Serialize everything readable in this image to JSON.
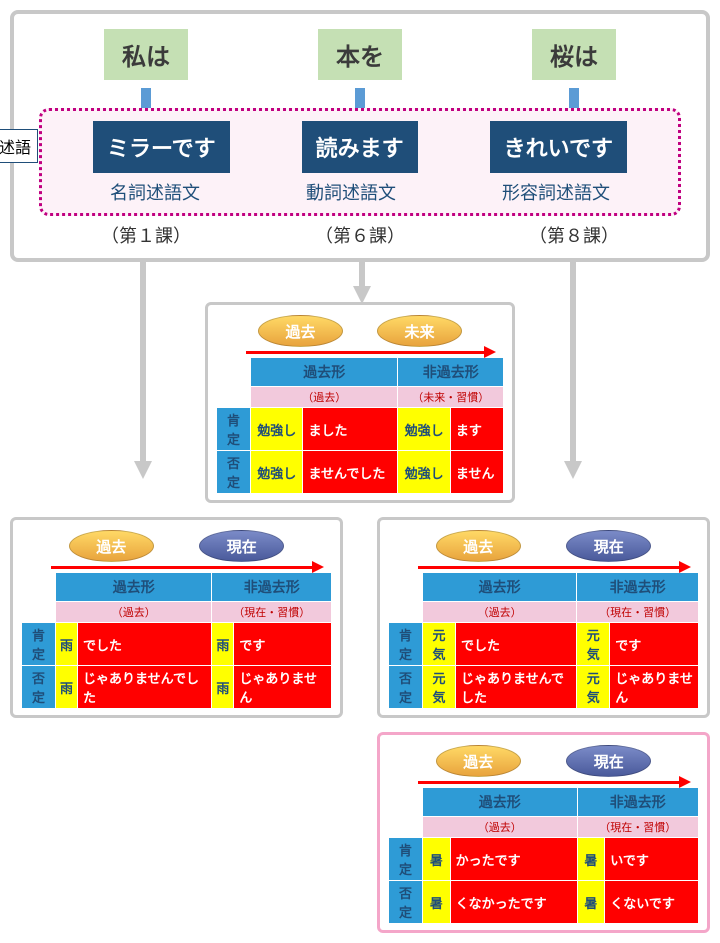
{
  "top": {
    "subjects": [
      "私は",
      "本を",
      "桜は"
    ],
    "jutsugo_label": "述語",
    "predicates": [
      "ミラーです",
      "読みます",
      "きれいです"
    ],
    "types": [
      "名詞述語文",
      "動詞述語文",
      "形容詞述語文"
    ],
    "lessons": [
      "（第１課）",
      "（第６課）",
      "（第８課）"
    ]
  },
  "colors": {
    "green": "#c5e0b4",
    "darkblue_box": "#1f4e79",
    "dotted_border": "#c00080",
    "dotted_bg": "#fdf2f8",
    "container_border": "#c8c8c8",
    "pink_border": "#f4a6c9",
    "header_blue": "#2e9bd6",
    "sub_pink": "#f2c9dc",
    "yellow": "#ffff00",
    "red": "#ff0000",
    "oval_orange": "#e8a33d",
    "oval_blue": "#4a5a9b"
  },
  "tables": [
    {
      "id": "verb",
      "oval_left": "過去",
      "oval_right": "未来",
      "oval_right_color": "orange",
      "col1": "過去形",
      "col2": "非過去形",
      "sub1": "（過去）",
      "sub2": "（未来・習慣）",
      "rows": [
        {
          "label": "肯定",
          "a": "勉強し",
          "b": "ました",
          "c": "勉強し",
          "d": "ます"
        },
        {
          "label": "否定",
          "a": "勉強し",
          "b": "ませんでした",
          "c": "勉強し",
          "d": "ません"
        }
      ]
    },
    {
      "id": "noun",
      "oval_left": "過去",
      "oval_right": "現在",
      "oval_right_color": "blue",
      "col1": "過去形",
      "col2": "非過去形",
      "sub1": "（過去）",
      "sub2": "（現在・習慣）",
      "rows": [
        {
          "label": "肯定",
          "a": "雨",
          "b": "でした",
          "c": "雨",
          "d": "です"
        },
        {
          "label": "否定",
          "a": "雨",
          "b": "じゃありませんでした",
          "c": "雨",
          "d": "じゃありません"
        }
      ]
    },
    {
      "id": "na_adj",
      "oval_left": "過去",
      "oval_right": "現在",
      "oval_right_color": "blue",
      "col1": "過去形",
      "col2": "非過去形",
      "sub1": "（過去）",
      "sub2": "（現在・習慣）",
      "rows": [
        {
          "label": "肯定",
          "a": "元気",
          "b": "でした",
          "c": "元気",
          "d": "です"
        },
        {
          "label": "否定",
          "a": "元気",
          "b": "じゃありませんでした",
          "c": "元気",
          "d": "じゃありません"
        }
      ]
    },
    {
      "id": "i_adj",
      "oval_left": "過去",
      "oval_right": "現在",
      "oval_right_color": "blue",
      "col1": "過去形",
      "col2": "非過去形",
      "sub1": "（過去）",
      "sub2": "（現在・習慣）",
      "rows": [
        {
          "label": "肯定",
          "a": "暑",
          "b": "かったです",
          "c": "暑",
          "d": "いです"
        },
        {
          "label": "否定",
          "a": "暑",
          "b": "くなかったです",
          "c": "暑",
          "d": "くないです"
        }
      ]
    }
  ]
}
